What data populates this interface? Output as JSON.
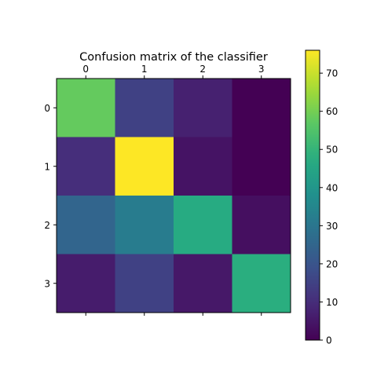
{
  "chart_data": {
    "type": "heatmap",
    "title": "Confusion matrix of the classifier",
    "xlabel": "",
    "ylabel": "",
    "x_tick_labels": [
      "0",
      "1",
      "2",
      "3"
    ],
    "y_tick_labels": [
      "0",
      "1",
      "2",
      "3"
    ],
    "x_ticks_position": "top-and-bottom",
    "matrix": [
      [
        58,
        15,
        7,
        0
      ],
      [
        10,
        76,
        4,
        0
      ],
      [
        25,
        32,
        47,
        3
      ],
      [
        6,
        15,
        5,
        48
      ]
    ],
    "colormap": "viridis",
    "color_range": [
      0,
      76
    ],
    "colorbar": {
      "position": "right",
      "ticks": [
        0,
        10,
        20,
        30,
        40,
        50,
        60,
        70
      ],
      "tick_labels": [
        "0",
        "10",
        "20",
        "30",
        "40",
        "50",
        "60",
        "70"
      ]
    },
    "grid": false,
    "legend": "none"
  }
}
